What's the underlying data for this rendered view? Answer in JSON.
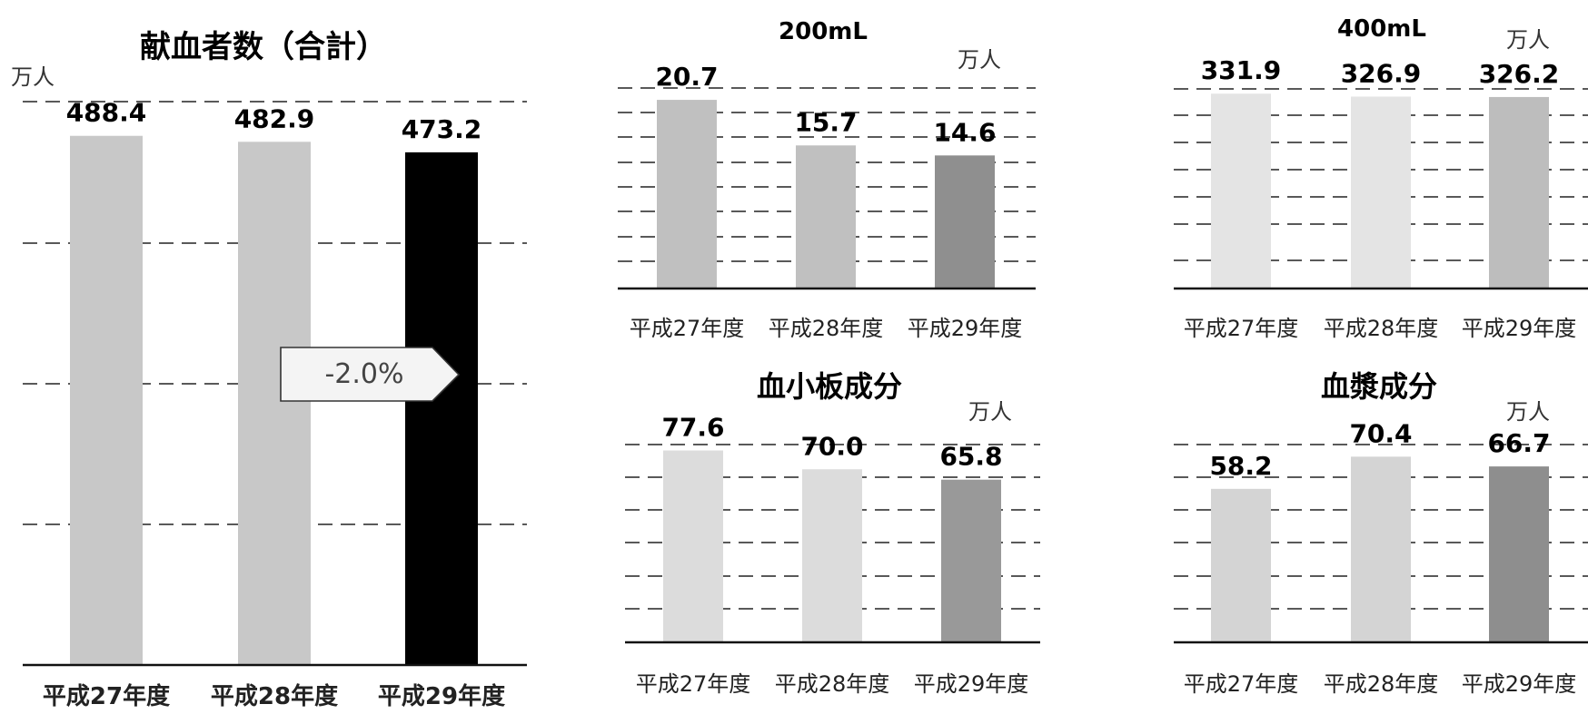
{
  "charts": {
    "total": {
      "title": "献血者数（合計）",
      "unit": "万人",
      "categories": [
        "平成27年度",
        "平成28年度",
        "平成29年度"
      ],
      "change_label": "-2.0%"
    },
    "ml200": {
      "title": "200mL",
      "unit": "万人",
      "categories": [
        "平成27年度",
        "平成28年度",
        "平成29年度"
      ]
    },
    "ml400": {
      "title": "400mL",
      "unit": "万人",
      "categories": [
        "平成27年度",
        "平成28年度",
        "平成29年度"
      ]
    },
    "platelet": {
      "title": "血小板成分",
      "unit": "万人",
      "categories": [
        "平成27年度",
        "平成28年度",
        "平成29年度"
      ]
    },
    "plasma": {
      "title": "血漿成分",
      "unit": "万人",
      "categories": [
        "平成27年度",
        "平成28年度",
        "平成29年度"
      ]
    }
  },
  "chart_data": [
    {
      "id": "total",
      "type": "bar",
      "title": "献血者数（合計）",
      "ylabel": "万人",
      "categories": [
        "平成27年度",
        "平成28年度",
        "平成29年度"
      ],
      "values": [
        488.4,
        482.9,
        473.2
      ],
      "data_labels": [
        "488.4",
        "482.9",
        "473.2"
      ],
      "ylim": [
        0,
        520
      ],
      "grid": "dashed horizontal",
      "bar_colors": [
        "#c8c8c8",
        "#c8c8c8",
        "#000000"
      ],
      "annotation": "-2.0%"
    },
    {
      "id": "ml200",
      "type": "bar",
      "title": "200mL",
      "ylabel": "万人",
      "categories": [
        "平成27年度",
        "平成28年度",
        "平成29年度"
      ],
      "values": [
        20.7,
        15.7,
        14.6
      ],
      "data_labels": [
        "20.7",
        "15.7",
        "14.6"
      ],
      "ylim": [
        0,
        22
      ],
      "grid": "dashed horizontal",
      "bar_colors": [
        "#c0c0c0",
        "#c0c0c0",
        "#8f8f8f"
      ]
    },
    {
      "id": "ml400",
      "type": "bar",
      "title": "400mL",
      "ylabel": "万人",
      "categories": [
        "平成27年度",
        "平成28年度",
        "平成29年度"
      ],
      "values": [
        331.9,
        326.9,
        326.2
      ],
      "data_labels": [
        "331.9",
        "326.9",
        "326.2"
      ],
      "ylim": [
        0,
        340
      ],
      "grid": "dashed horizontal",
      "bar_colors": [
        "#e4e4e4",
        "#e4e4e4",
        "#bdbdbd"
      ]
    },
    {
      "id": "platelet",
      "type": "bar",
      "title": "血小板成分",
      "ylabel": "万人",
      "categories": [
        "平成27年度",
        "平成28年度",
        "平成29年度"
      ],
      "values": [
        77.6,
        70.0,
        65.8
      ],
      "data_labels": [
        "77.6",
        "70.0",
        "65.8"
      ],
      "ylim": [
        0,
        80
      ],
      "grid": "dashed horizontal",
      "bar_colors": [
        "#dcdcdc",
        "#dcdcdc",
        "#999999"
      ]
    },
    {
      "id": "plasma",
      "type": "bar",
      "title": "血漿成分",
      "ylabel": "万人",
      "categories": [
        "平成27年度",
        "平成28年度",
        "平成29年度"
      ],
      "values": [
        58.2,
        70.4,
        66.7
      ],
      "data_labels": [
        "58.2",
        "70.4",
        "66.7"
      ],
      "ylim": [
        0,
        75
      ],
      "grid": "dashed horizontal",
      "bar_colors": [
        "#d4d4d4",
        "#d4d4d4",
        "#8e8e8e"
      ]
    }
  ]
}
